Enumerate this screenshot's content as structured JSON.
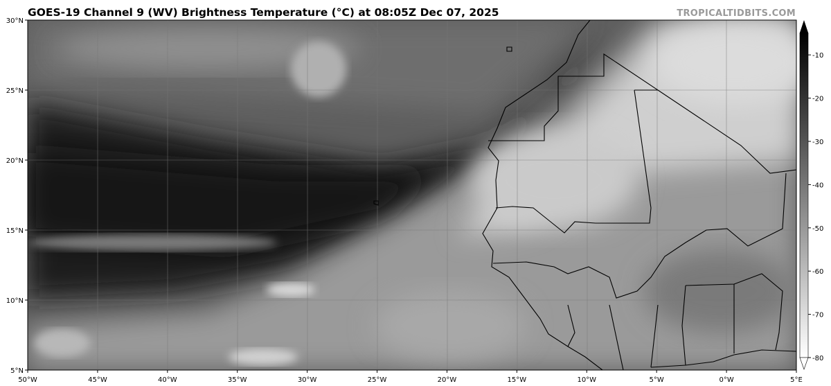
{
  "title": "GOES-19 Channel 9 (WV) Brightness Temperature (°C) at 08:05Z Dec 07, 2025",
  "brand": "TROPICALTIDBITS.COM",
  "map": {
    "lon_range": [
      -50,
      5
    ],
    "lat_range": [
      5,
      30
    ],
    "lon_labels": [
      "50°W",
      "45°W",
      "40°W",
      "35°W",
      "30°W",
      "25°W",
      "20°W",
      "15°W",
      "10°W",
      "5°W",
      "0°W",
      "5°E"
    ],
    "lat_labels": [
      "30°N",
      "25°N",
      "20°N",
      "15°N",
      "10°N",
      "5°N"
    ],
    "grid": true
  },
  "colorbar": {
    "range": [
      -80,
      -5
    ],
    "ticks": [
      "-10",
      "-20",
      "-30",
      "-40",
      "-50",
      "-60",
      "-70",
      "-80"
    ],
    "colormap": "grayscale, black = warm, white = cold",
    "extend": "both"
  }
}
